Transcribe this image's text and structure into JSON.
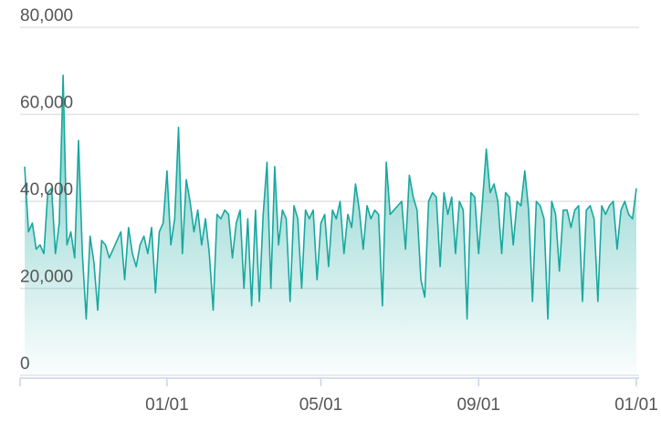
{
  "chart_data": {
    "type": "area",
    "categories": [
      null,
      null,
      null,
      null,
      null,
      null,
      null,
      null,
      null,
      null,
      null,
      null,
      null,
      null,
      null,
      null,
      null,
      null,
      null,
      null,
      null,
      null,
      null,
      null,
      null,
      null,
      null,
      null,
      null,
      null,
      null,
      null,
      null,
      null,
      null,
      null,
      null,
      "01/01",
      null,
      null,
      null,
      null,
      null,
      null,
      null,
      null,
      null,
      null,
      null,
      null,
      null,
      null,
      null,
      null,
      null,
      null,
      null,
      null,
      null,
      null,
      null,
      null,
      null,
      null,
      null,
      null,
      null,
      null,
      null,
      null,
      null,
      null,
      null,
      null,
      null,
      null,
      null,
      "05/01",
      null,
      null,
      null,
      null,
      null,
      null,
      null,
      null,
      null,
      null,
      null,
      null,
      null,
      null,
      null,
      null,
      null,
      null,
      null,
      null,
      null,
      null,
      null,
      null,
      null,
      null,
      null,
      null,
      null,
      null,
      null,
      null,
      null,
      null,
      null,
      null,
      null,
      null,
      null,
      null,
      "09/01",
      null,
      null,
      null,
      null,
      null,
      null,
      null,
      null,
      null,
      null,
      null,
      null,
      null,
      null,
      null,
      null,
      null,
      null,
      null,
      null,
      null,
      null,
      null,
      null,
      null,
      null,
      null,
      null,
      null,
      null,
      null,
      null,
      null,
      null,
      null,
      null,
      null,
      null,
      null,
      null,
      "01/01"
    ],
    "series": [
      {
        "color": "#17a89f",
        "values": [
          48000,
          33000,
          35000,
          29000,
          30000,
          28000,
          42000,
          43000,
          28000,
          35000,
          69000,
          30000,
          33000,
          27000,
          54000,
          28000,
          13000,
          32000,
          26000,
          15000,
          31000,
          30000,
          27000,
          29000,
          31000,
          33000,
          22000,
          34000,
          28000,
          25000,
          30000,
          32000,
          28000,
          34000,
          19000,
          33000,
          35000,
          47000,
          30000,
          36000,
          57000,
          28000,
          45000,
          40000,
          33000,
          38000,
          30000,
          36000,
          28000,
          15000,
          37000,
          36000,
          38000,
          37000,
          27000,
          35000,
          38000,
          20000,
          36000,
          16000,
          38000,
          17000,
          37000,
          49000,
          20000,
          48000,
          30000,
          38000,
          36000,
          17000,
          39000,
          36000,
          20000,
          38000,
          36000,
          38000,
          22000,
          35000,
          37000,
          25000,
          38000,
          36000,
          40000,
          28000,
          37000,
          34000,
          44000,
          38000,
          29000,
          39000,
          36000,
          38000,
          37000,
          16000,
          49000,
          37000,
          38000,
          39000,
          40000,
          29000,
          46000,
          41000,
          38000,
          22000,
          18000,
          40000,
          42000,
          41000,
          25000,
          42000,
          37000,
          41000,
          28000,
          40000,
          38000,
          13000,
          42000,
          41000,
          28000,
          40000,
          52000,
          42000,
          44000,
          40000,
          28000,
          42000,
          41000,
          30000,
          40000,
          39000,
          47000,
          38000,
          17000,
          40000,
          39000,
          36000,
          13000,
          40000,
          37000,
          24000,
          38000,
          38000,
          34000,
          38000,
          39000,
          17000,
          38000,
          39000,
          36000,
          17000,
          39000,
          37000,
          39000,
          40000,
          29000,
          38000,
          40000,
          37000,
          36000,
          43000
        ]
      }
    ],
    "ylim": [
      0,
      80000
    ],
    "yticks": [
      0,
      {
        "value": 20000,
        "label": "20,000"
      },
      {
        "value": 40000,
        "label": "40,000"
      },
      {
        "value": 60000,
        "label": "60,000"
      },
      {
        "value": 80000,
        "label": "80,000"
      }
    ],
    "grid": true
  }
}
